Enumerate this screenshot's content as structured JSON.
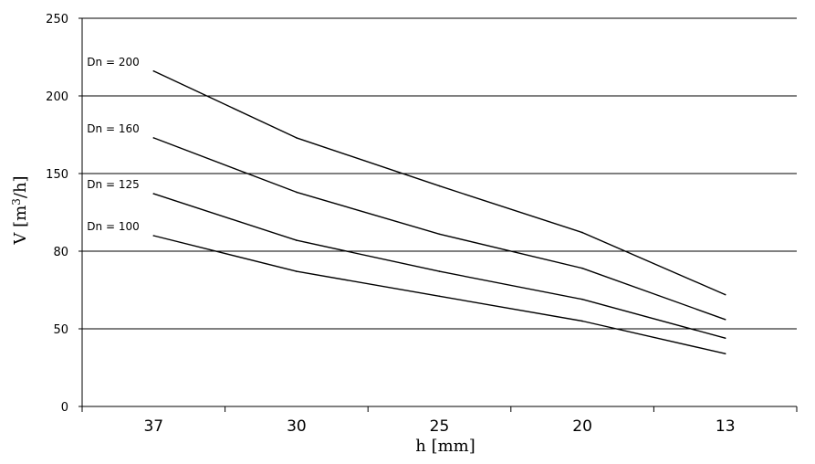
{
  "chart_data": {
    "type": "line",
    "categories": [
      "37",
      "30",
      "25",
      "20",
      "13"
    ],
    "yticks": [
      "0",
      "50",
      "80",
      "150",
      "200",
      "250"
    ],
    "ylim": [
      0,
      250
    ],
    "xlabel": "h [mm]",
    "ylabel": {
      "main": "V [m",
      "sup": "3",
      "tail": "/h]"
    },
    "grid": true,
    "series": [
      {
        "name": "Dn = 200",
        "values": [
          216,
          173,
          142,
          112,
          72
        ]
      },
      {
        "name": "Dn = 160",
        "values": [
          173,
          138,
          111,
          89,
          56
        ]
      },
      {
        "name": "Dn = 125",
        "values": [
          137,
          107,
          87,
          69,
          44
        ]
      },
      {
        "name": "Dn = 100",
        "values": [
          110,
          87,
          71,
          55,
          34
        ]
      }
    ]
  }
}
